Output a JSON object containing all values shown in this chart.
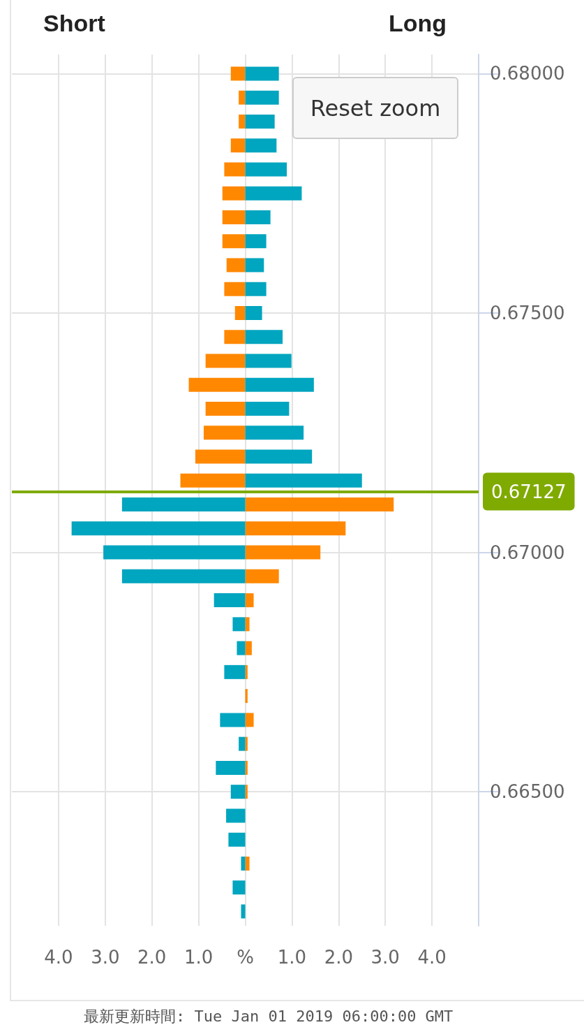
{
  "chart_data": {
    "type": "bar",
    "orientation": "horizontal",
    "x": [
      0.68,
      0.6795,
      0.679,
      0.6785,
      0.678,
      0.6775,
      0.677,
      0.6765,
      0.676,
      0.6755,
      0.675,
      0.6745,
      0.674,
      0.6735,
      0.673,
      0.6725,
      0.672,
      0.6715,
      0.671,
      0.6705,
      0.67,
      0.6695,
      0.669,
      0.6685,
      0.668,
      0.6675,
      0.667,
      0.6665,
      0.666,
      0.6655,
      0.665,
      0.6645,
      0.664,
      0.6635,
      0.663,
      0.6625
    ],
    "series": [
      {
        "color": "#ff8800",
        "values": [
          -0.31,
          -0.14,
          -0.14,
          -0.31,
          -0.45,
          -0.49,
          -0.49,
          -0.49,
          -0.4,
          -0.45,
          -0.22,
          -0.45,
          -0.85,
          -1.21,
          -0.85,
          -0.89,
          -1.07,
          -1.39,
          3.18,
          2.15,
          1.61,
          0.72,
          0.18,
          0.09,
          0.14,
          0.05,
          0.05,
          0.18,
          0.05,
          0.05,
          0.05,
          0,
          0,
          0.09,
          0,
          0
        ]
      },
      {
        "color": "#00a5bf",
        "values": [
          0.72,
          0.72,
          0.63,
          0.67,
          0.89,
          1.21,
          0.54,
          0.45,
          0.4,
          0.45,
          0.36,
          0.8,
          0.99,
          1.47,
          0.94,
          1.25,
          1.43,
          2.5,
          -2.64,
          -3.72,
          -3.04,
          -2.64,
          -0.67,
          -0.27,
          -0.18,
          -0.45,
          0,
          -0.54,
          -0.14,
          -0.63,
          -0.31,
          -0.41,
          -0.36,
          -0.09,
          -0.27,
          -0.09
        ]
      }
    ],
    "xlim": [
      -5,
      5
    ],
    "xticks": [
      {
        "value": -4,
        "label": "4.0"
      },
      {
        "value": -3,
        "label": "3.0"
      },
      {
        "value": -2,
        "label": "2.0"
      },
      {
        "value": -1,
        "label": "1.0"
      },
      {
        "value": 0,
        "label": "%"
      },
      {
        "value": 1,
        "label": "1.0"
      },
      {
        "value": 2,
        "label": "2.0"
      },
      {
        "value": 3,
        "label": "3.0"
      },
      {
        "value": 4,
        "label": "4.0"
      }
    ],
    "ylim": [
      0.6622,
      0.6804
    ],
    "yticks": [
      {
        "value": 0.665,
        "label": "0.66500"
      },
      {
        "value": 0.67,
        "label": "0.67000"
      },
      {
        "value": 0.675,
        "label": "0.67500"
      },
      {
        "value": 0.68,
        "label": "0.68000"
      }
    ],
    "ref_lines": [
      {
        "axis": "y",
        "value": 0.67127,
        "label": "0.67127",
        "color": "#7faa00"
      }
    ],
    "annotations": [
      "Short",
      "Long",
      "Reset zoom",
      "最新更新時間: Tue Jan 01 2019 06:00:00 GMT"
    ],
    "stacked": true,
    "grid": true
  }
}
